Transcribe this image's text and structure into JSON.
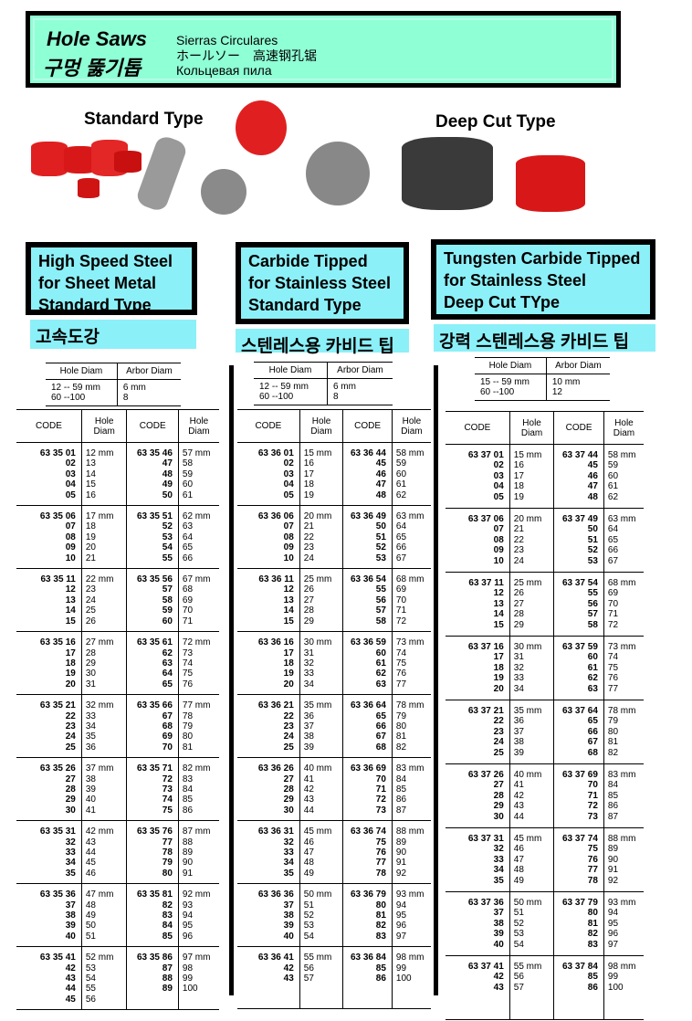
{
  "header": {
    "title_en": "Hole Saws",
    "title_ko": "구멍 뚫기톱",
    "subtitle_es": "Sierras Circulares",
    "subtitle_jp_cn": "ホールソー　高速钢孔锯",
    "subtitle_ru": "Кольцевая пила",
    "background_color": "#8fffd6"
  },
  "photos": {
    "standard_label": "Standard Type",
    "deep_label": "Deep Cut Type"
  },
  "sections": [
    {
      "title_lines": [
        "High Speed Steel",
        "for Sheet Metal",
        "Standard Type"
      ],
      "korean": "고속도강",
      "arbor": {
        "headers": [
          "Hole  Diam",
          "Arbor  Diam"
        ],
        "rows": [
          [
            "12 -- 59 mm",
            "6 mm"
          ],
          [
            "60 --100",
            "8"
          ]
        ]
      },
      "table": {
        "headers": [
          "CODE",
          "Hole Diam",
          "CODE",
          "Hole Diam"
        ],
        "groups": [
          [
            [
              "63 35 01",
              "12 mm",
              "63 35 46",
              "57 mm"
            ],
            [
              "02",
              "13",
              "47",
              "58"
            ],
            [
              "03",
              "14",
              "48",
              "59"
            ],
            [
              "04",
              "15",
              "49",
              "60"
            ],
            [
              "05",
              "16",
              "50",
              "61"
            ]
          ],
          [
            [
              "63 35 06",
              "17 mm",
              "63 35 51",
              "62 mm"
            ],
            [
              "07",
              "18",
              "52",
              "63"
            ],
            [
              "08",
              "19",
              "53",
              "64"
            ],
            [
              "09",
              "20",
              "54",
              "65"
            ],
            [
              "10",
              "21",
              "55",
              "66"
            ]
          ],
          [
            [
              "63 35 11",
              "22 mm",
              "63 35 56",
              "67 mm"
            ],
            [
              "12",
              "23",
              "57",
              "68"
            ],
            [
              "13",
              "24",
              "58",
              "69"
            ],
            [
              "14",
              "25",
              "59",
              "70"
            ],
            [
              "15",
              "26",
              "60",
              "71"
            ]
          ],
          [
            [
              "63 35 16",
              "27 mm",
              "63 35 61",
              "72 mm"
            ],
            [
              "17",
              "28",
              "62",
              "73"
            ],
            [
              "18",
              "29",
              "63",
              "74"
            ],
            [
              "19",
              "30",
              "64",
              "75"
            ],
            [
              "20",
              "31",
              "65",
              "76"
            ]
          ],
          [
            [
              "63 35 21",
              "32 mm",
              "63 35 66",
              "77 mm"
            ],
            [
              "22",
              "33",
              "67",
              "78"
            ],
            [
              "23",
              "34",
              "68",
              "79"
            ],
            [
              "24",
              "35",
              "69",
              "80"
            ],
            [
              "25",
              "36",
              "70",
              "81"
            ]
          ],
          [
            [
              "63 35 26",
              "37 mm",
              "63 35 71",
              "82 mm"
            ],
            [
              "27",
              "38",
              "72",
              "83"
            ],
            [
              "28",
              "39",
              "73",
              "84"
            ],
            [
              "29",
              "40",
              "74",
              "85"
            ],
            [
              "30",
              "41",
              "75",
              "86"
            ]
          ],
          [
            [
              "63 35 31",
              "42 mm",
              "63 35 76",
              "87 mm"
            ],
            [
              "32",
              "43",
              "77",
              "88"
            ],
            [
              "33",
              "44",
              "78",
              "89"
            ],
            [
              "34",
              "45",
              "79",
              "90"
            ],
            [
              "35",
              "46",
              "80",
              "91"
            ]
          ],
          [
            [
              "63 35 36",
              "47 mm",
              "63 35 81",
              "92 mm"
            ],
            [
              "37",
              "48",
              "82",
              "93"
            ],
            [
              "38",
              "49",
              "83",
              "94"
            ],
            [
              "39",
              "50",
              "84",
              "95"
            ],
            [
              "40",
              "51",
              "85",
              "96"
            ]
          ],
          [
            [
              "63 35 41",
              "52 mm",
              "63 35 86",
              "97 mm"
            ],
            [
              "42",
              "53",
              "87",
              "98"
            ],
            [
              "43",
              "54",
              "88",
              "99"
            ],
            [
              "44",
              "55",
              "89",
              "100"
            ],
            [
              "45",
              "56",
              "",
              ""
            ]
          ]
        ]
      }
    },
    {
      "title_lines": [
        "Carbide Tipped",
        "for Stainless Steel",
        "Standard Type"
      ],
      "korean": "스텐레스용 카비드 팁",
      "arbor": {
        "headers": [
          "Hole  Diam",
          "Arbor  Diam"
        ],
        "rows": [
          [
            "12 -- 59 mm",
            "6 mm"
          ],
          [
            "60 --100",
            "8"
          ]
        ]
      },
      "table": {
        "headers": [
          "CODE",
          "Hole Diam",
          "CODE",
          "Hole Diam"
        ],
        "groups": [
          [
            [
              "63 36 01",
              "15 mm",
              "63 36 44",
              "58 mm"
            ],
            [
              "02",
              "16",
              "45",
              "59"
            ],
            [
              "03",
              "17",
              "46",
              "60"
            ],
            [
              "04",
              "18",
              "47",
              "61"
            ],
            [
              "05",
              "19",
              "48",
              "62"
            ]
          ],
          [
            [
              "63 36 06",
              "20 mm",
              "63 36 49",
              "63 mm"
            ],
            [
              "07",
              "21",
              "50",
              "64"
            ],
            [
              "08",
              "22",
              "51",
              "65"
            ],
            [
              "09",
              "23",
              "52",
              "66"
            ],
            [
              "10",
              "24",
              "53",
              "67"
            ]
          ],
          [
            [
              "63 36 11",
              "25 mm",
              "63 36 54",
              "68 mm"
            ],
            [
              "12",
              "26",
              "55",
              "69"
            ],
            [
              "13",
              "27",
              "56",
              "70"
            ],
            [
              "14",
              "28",
              "57",
              "71"
            ],
            [
              "15",
              "29",
              "58",
              "72"
            ]
          ],
          [
            [
              "63 36 16",
              "30 mm",
              "63 36 59",
              "73 mm"
            ],
            [
              "17",
              "31",
              "60",
              "74"
            ],
            [
              "18",
              "32",
              "61",
              "75"
            ],
            [
              "19",
              "33",
              "62",
              "76"
            ],
            [
              "20",
              "34",
              "63",
              "77"
            ]
          ],
          [
            [
              "63 36 21",
              "35 mm",
              "63 36 64",
              "78 mm"
            ],
            [
              "22",
              "36",
              "65",
              "79"
            ],
            [
              "23",
              "37",
              "66",
              "80"
            ],
            [
              "24",
              "38",
              "67",
              "81"
            ],
            [
              "25",
              "39",
              "68",
              "82"
            ]
          ],
          [
            [
              "63 36 26",
              "40 mm",
              "63 36 69",
              "83 mm"
            ],
            [
              "27",
              "41",
              "70",
              "84"
            ],
            [
              "28",
              "42",
              "71",
              "85"
            ],
            [
              "29",
              "43",
              "72",
              "86"
            ],
            [
              "30",
              "44",
              "73",
              "87"
            ]
          ],
          [
            [
              "63 36 31",
              "45 mm",
              "63 36 74",
              "88 mm"
            ],
            [
              "32",
              "46",
              "75",
              "89"
            ],
            [
              "33",
              "47",
              "76",
              "90"
            ],
            [
              "34",
              "48",
              "77",
              "91"
            ],
            [
              "35",
              "49",
              "78",
              "92"
            ]
          ],
          [
            [
              "63 36 36",
              "50 mm",
              "63 36 79",
              "93 mm"
            ],
            [
              "37",
              "51",
              "80",
              "94"
            ],
            [
              "38",
              "52",
              "81",
              "95"
            ],
            [
              "39",
              "53",
              "82",
              "96"
            ],
            [
              "40",
              "54",
              "83",
              "97"
            ]
          ],
          [
            [
              "63 36 41",
              "55 mm",
              "63 36 84",
              "98 mm"
            ],
            [
              "42",
              "56",
              "85",
              "99"
            ],
            [
              "43",
              "57",
              "86",
              "100"
            ]
          ]
        ]
      }
    },
    {
      "title_lines": [
        "Tungsten Carbide Tipped",
        "for Stainless Steel",
        "Deep Cut TYpe"
      ],
      "korean": "강력 스텐레스용 카비드 팁",
      "arbor": {
        "headers": [
          "Hole  Diam",
          "Arbor  Diam"
        ],
        "rows": [
          [
            "15 -- 59 mm",
            "10 mm"
          ],
          [
            "60 --100",
            "12"
          ]
        ]
      },
      "table": {
        "headers": [
          "CODE",
          "Hole Diam",
          "CODE",
          "Hole Diam"
        ],
        "groups": [
          [
            [
              "63 37 01",
              "15 mm",
              "63 37 44",
              "58 mm"
            ],
            [
              "02",
              "16",
              "45",
              "59"
            ],
            [
              "03",
              "17",
              "46",
              "60"
            ],
            [
              "04",
              "18",
              "47",
              "61"
            ],
            [
              "05",
              "19",
              "48",
              "62"
            ]
          ],
          [
            [
              "63 37 06",
              "20 mm",
              "63 37 49",
              "63 mm"
            ],
            [
              "07",
              "21",
              "50",
              "64"
            ],
            [
              "08",
              "22",
              "51",
              "65"
            ],
            [
              "09",
              "23",
              "52",
              "66"
            ],
            [
              "10",
              "24",
              "53",
              "67"
            ]
          ],
          [
            [
              "63 37 11",
              "25 mm",
              "63 37 54",
              "68 mm"
            ],
            [
              "12",
              "26",
              "55",
              "69"
            ],
            [
              "13",
              "27",
              "56",
              "70"
            ],
            [
              "14",
              "28",
              "57",
              "71"
            ],
            [
              "15",
              "29",
              "58",
              "72"
            ]
          ],
          [
            [
              "63 37 16",
              "30 mm",
              "63 37 59",
              "73 mm"
            ],
            [
              "17",
              "31",
              "60",
              "74"
            ],
            [
              "18",
              "32",
              "61",
              "75"
            ],
            [
              "19",
              "33",
              "62",
              "76"
            ],
            [
              "20",
              "34",
              "63",
              "77"
            ]
          ],
          [
            [
              "63 37 21",
              "35 mm",
              "63 37 64",
              "78 mm"
            ],
            [
              "22",
              "36",
              "65",
              "79"
            ],
            [
              "23",
              "37",
              "66",
              "80"
            ],
            [
              "24",
              "38",
              "67",
              "81"
            ],
            [
              "25",
              "39",
              "68",
              "82"
            ]
          ],
          [
            [
              "63 37 26",
              "40 mm",
              "63 37 69",
              "83 mm"
            ],
            [
              "27",
              "41",
              "70",
              "84"
            ],
            [
              "28",
              "42",
              "71",
              "85"
            ],
            [
              "29",
              "43",
              "72",
              "86"
            ],
            [
              "30",
              "44",
              "73",
              "87"
            ]
          ],
          [
            [
              "63 37 31",
              "45 mm",
              "63 37 74",
              "88 mm"
            ],
            [
              "32",
              "46",
              "75",
              "89"
            ],
            [
              "33",
              "47",
              "76",
              "90"
            ],
            [
              "34",
              "48",
              "77",
              "91"
            ],
            [
              "35",
              "49",
              "78",
              "92"
            ]
          ],
          [
            [
              "63 37 36",
              "50 mm",
              "63 37 79",
              "93 mm"
            ],
            [
              "37",
              "51",
              "80",
              "94"
            ],
            [
              "38",
              "52",
              "81",
              "95"
            ],
            [
              "39",
              "53",
              "82",
              "96"
            ],
            [
              "40",
              "54",
              "83",
              "97"
            ]
          ],
          [
            [
              "63 37 41",
              "55 mm",
              "63 37 84",
              "98 mm"
            ],
            [
              "42",
              "56",
              "85",
              "99"
            ],
            [
              "43",
              "57",
              "86",
              "100"
            ]
          ]
        ]
      }
    }
  ]
}
